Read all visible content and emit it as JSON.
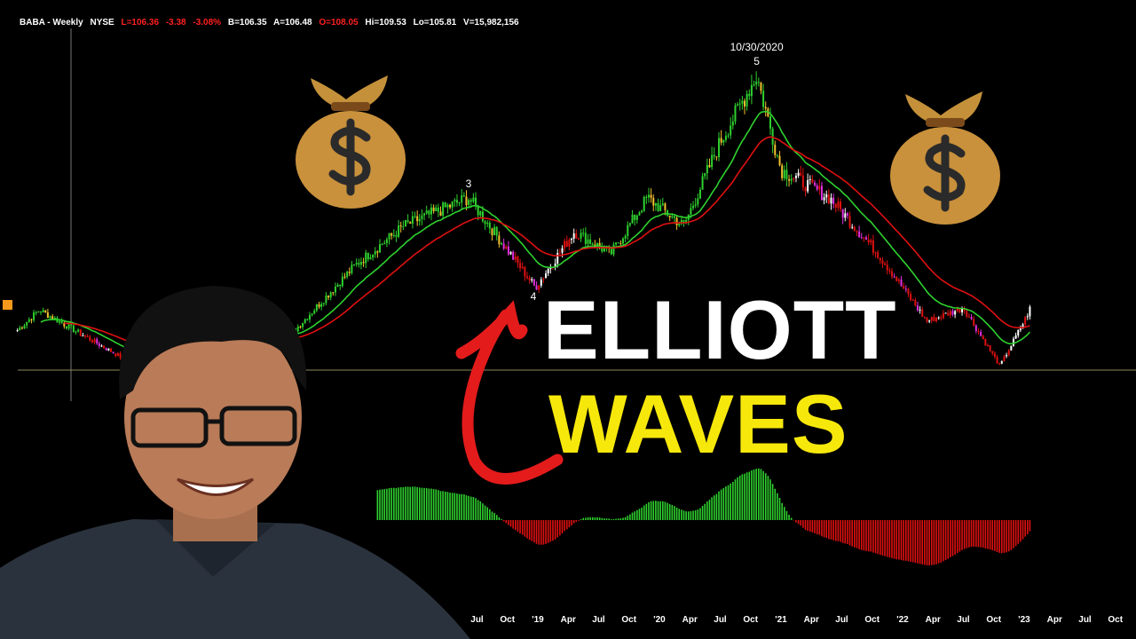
{
  "header": {
    "symbol": "BABA - Weekly",
    "exchange": "NYSE",
    "last": "L=106.36",
    "change": "-3.38",
    "change_pct": "-3.08%",
    "bid": "B=106.35",
    "ask": "A=106.48",
    "open": "O=108.05",
    "high": "Hi=109.53",
    "low": "Lo=105.81",
    "volume": "V=15,982,156"
  },
  "overlay": {
    "title_line1": "ELLIOTT",
    "title_line2": "WAVES",
    "title_line2_color": "#f7e80c",
    "arrow_color": "#e41b1b",
    "icons": [
      "money-bag-icon",
      "money-bag-icon"
    ]
  },
  "chart_data": {
    "type": "candlestick",
    "title": "",
    "xlabel": "",
    "ylabel": "",
    "x_tick_labels": [
      "Jul",
      "Oct",
      "'19",
      "Apr",
      "Jul",
      "Oct",
      "'20",
      "Apr",
      "Jul",
      "Oct",
      "'21",
      "Apr",
      "Jul",
      "Oct",
      "'22",
      "Apr",
      "Jul",
      "Oct",
      "'23",
      "Apr",
      "Jul",
      "Oct"
    ],
    "x_tick_dates": [
      2018.5,
      2018.75,
      2019.0,
      2019.25,
      2019.5,
      2019.75,
      2020.0,
      2020.25,
      2020.5,
      2020.75,
      2021.0,
      2021.25,
      2021.5,
      2021.75,
      2022.0,
      2022.25,
      2022.5,
      2022.75,
      2023.0,
      2023.25,
      2023.5,
      2023.75
    ],
    "approx_price_path": [
      [
        2014.72,
        92
      ],
      [
        2014.9,
        110
      ],
      [
        2015.3,
        85
      ],
      [
        2015.7,
        60
      ],
      [
        2016.0,
        72
      ],
      [
        2016.5,
        82
      ],
      [
        2017.0,
        92
      ],
      [
        2017.5,
        150
      ],
      [
        2017.9,
        185
      ],
      [
        2018.43,
        210
      ],
      [
        2018.98,
        130
      ],
      [
        2019.3,
        180
      ],
      [
        2019.6,
        160
      ],
      [
        2019.9,
        210
      ],
      [
        2020.2,
        185
      ],
      [
        2020.5,
        260
      ],
      [
        2020.8,
        319
      ],
      [
        2021.0,
        235
      ],
      [
        2021.4,
        210
      ],
      [
        2021.8,
        160
      ],
      [
        2022.2,
        100
      ],
      [
        2022.5,
        112
      ],
      [
        2022.8,
        60
      ],
      [
        2023.0,
        100
      ],
      [
        2023.06,
        114
      ]
    ],
    "moving_averages": [
      {
        "color": "#2ed12e"
      },
      {
        "color": "#e01010"
      }
    ],
    "oscillator": {
      "positive_color": "#2ed12e",
      "negative_color": "#e01010"
    },
    "wave_labels": [
      {
        "label": "3",
        "date": 2018.43
      },
      {
        "label": "4",
        "date": 2018.98
      },
      {
        "label": "5",
        "date": 2020.8
      },
      {
        "label": "10/30/2020",
        "date": 2020.8
      }
    ],
    "horizontal_line_price": 58
  }
}
